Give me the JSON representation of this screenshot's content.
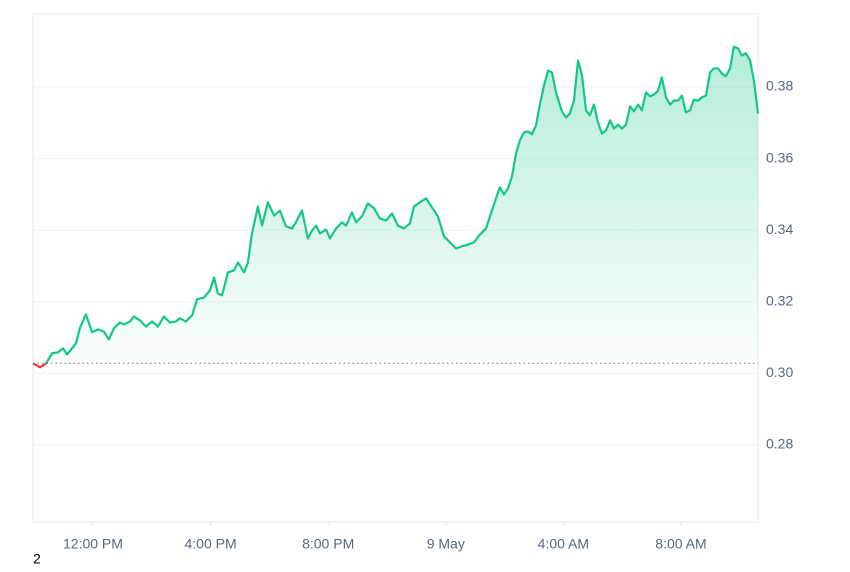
{
  "chart_data": {
    "type": "line",
    "x": [
      9.96,
      10.2,
      10.4,
      10.61,
      10.81,
      10.98,
      11.12,
      11.29,
      11.42,
      11.56,
      11.76,
      11.97,
      12.17,
      12.37,
      12.54,
      12.71,
      12.92,
      13.05,
      13.26,
      13.39,
      13.6,
      13.8,
      14.01,
      14.21,
      14.41,
      14.62,
      14.82,
      14.96,
      15.16,
      15.37,
      15.54,
      15.78,
      15.98,
      16.12,
      16.25,
      16.39,
      16.59,
      16.8,
      16.93,
      17.14,
      17.27,
      17.41,
      17.61,
      17.75,
      17.95,
      18.16,
      18.36,
      18.56,
      18.77,
      18.9,
      19.11,
      19.31,
      19.45,
      19.59,
      19.72,
      19.93,
      20.06,
      20.27,
      20.47,
      20.61,
      20.81,
      20.95,
      21.15,
      21.35,
      21.56,
      21.76,
      21.97,
      22.17,
      22.37,
      22.58,
      22.78,
      22.92,
      23.12,
      23.33,
      23.53,
      23.73,
      23.94,
      24.14,
      24.35,
      24.55,
      24.76,
      24.96,
      25.16,
      25.37,
      25.57,
      25.71,
      25.84,
      25.98,
      26.12,
      26.25,
      26.39,
      26.52,
      26.66,
      26.8,
      26.93,
      27.07,
      27.2,
      27.34,
      27.48,
      27.61,
      27.75,
      27.95,
      28.09,
      28.22,
      28.36,
      28.5,
      28.63,
      28.77,
      28.9,
      29.04,
      29.18,
      29.31,
      29.45,
      29.59,
      29.72,
      29.86,
      29.99,
      30.13,
      30.27,
      30.4,
      30.54,
      30.67,
      30.81,
      30.95,
      31.08,
      31.22,
      31.35,
      31.49,
      31.63,
      31.76,
      31.9,
      32.03,
      32.17,
      32.31,
      32.44,
      32.58,
      32.71,
      32.85,
      32.99,
      33.12,
      33.26,
      33.39,
      33.53,
      33.67,
      33.8,
      33.94,
      34.07,
      34.21,
      34.35,
      34.48,
      34.62
    ],
    "values": [
      0.3028,
      0.3017,
      0.3028,
      0.3056,
      0.3059,
      0.307,
      0.3053,
      0.307,
      0.3084,
      0.3128,
      0.3165,
      0.3115,
      0.3123,
      0.3117,
      0.3095,
      0.3126,
      0.3142,
      0.3137,
      0.3145,
      0.3159,
      0.3148,
      0.3131,
      0.3145,
      0.3131,
      0.3159,
      0.3142,
      0.3145,
      0.3154,
      0.3145,
      0.3162,
      0.3207,
      0.3212,
      0.3232,
      0.3268,
      0.3223,
      0.3218,
      0.3282,
      0.3288,
      0.331,
      0.3282,
      0.331,
      0.3391,
      0.3466,
      0.3413,
      0.3478,
      0.3441,
      0.3455,
      0.3411,
      0.3405,
      0.3422,
      0.3455,
      0.3377,
      0.3399,
      0.3413,
      0.3391,
      0.3402,
      0.3377,
      0.3405,
      0.3422,
      0.3413,
      0.345,
      0.3422,
      0.3439,
      0.3475,
      0.3461,
      0.3433,
      0.3427,
      0.3447,
      0.3413,
      0.3405,
      0.3419,
      0.3466,
      0.3478,
      0.3489,
      0.3464,
      0.3439,
      0.3383,
      0.3366,
      0.3349,
      0.3355,
      0.336,
      0.3366,
      0.3388,
      0.3405,
      0.3455,
      0.3489,
      0.352,
      0.35,
      0.3517,
      0.355,
      0.3614,
      0.3651,
      0.3673,
      0.3676,
      0.3668,
      0.3693,
      0.3751,
      0.3804,
      0.3846,
      0.3841,
      0.3785,
      0.3732,
      0.3715,
      0.3726,
      0.3762,
      0.3874,
      0.3835,
      0.3735,
      0.3721,
      0.3751,
      0.3701,
      0.367,
      0.3679,
      0.3707,
      0.3684,
      0.3695,
      0.3684,
      0.3695,
      0.3746,
      0.3732,
      0.3751,
      0.3735,
      0.3785,
      0.3774,
      0.3779,
      0.379,
      0.3827,
      0.3771,
      0.3751,
      0.3762,
      0.3762,
      0.3776,
      0.3729,
      0.3735,
      0.3765,
      0.3762,
      0.3771,
      0.3776,
      0.3841,
      0.3852,
      0.3852,
      0.3838,
      0.383,
      0.3852,
      0.3913,
      0.3908,
      0.3888,
      0.3894,
      0.3874,
      0.3818,
      0.3726
    ],
    "color": "#16c784",
    "down_color": "#ea3943",
    "xlim": [
      9.96,
      34.62
    ],
    "xticks": [
      {
        "value": 12,
        "label": "12:00 PM"
      },
      {
        "value": 16,
        "label": "4:00 PM"
      },
      {
        "value": 20,
        "label": "8:00 PM"
      },
      {
        "value": 24,
        "label": "9 May"
      },
      {
        "value": 28,
        "label": "4:00 AM"
      },
      {
        "value": 32,
        "label": "8:00 AM"
      }
    ],
    "ylim": [
      0.2585,
      0.4004
    ],
    "yticks": [
      0.28,
      {
        "value": 0.3,
        "label": "0.30"
      },
      0.32,
      0.34,
      0.36,
      0.38
    ],
    "grid": true,
    "annotations": [
      "2"
    ]
  }
}
